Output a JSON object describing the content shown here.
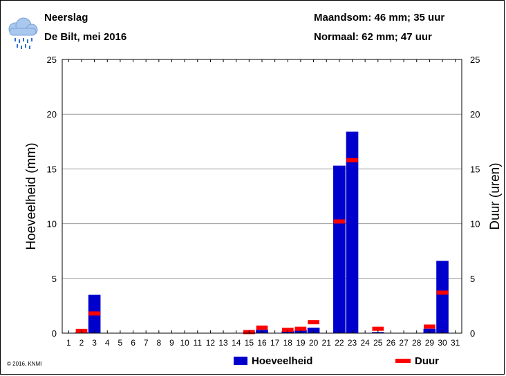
{
  "header": {
    "title": "Neerslag",
    "subtitle": "De Bilt, mei 2016",
    "monthly_sum": "Maandsom: 46 mm; 35 uur",
    "normal": "Normaal: 62 mm; 47 uur"
  },
  "icon": "rain-cloud-icon",
  "copyright": "© 2016, KNMI",
  "colors": {
    "amount": "#0000cc",
    "duration": "#ff0000",
    "grid": "#999999"
  },
  "chart_data": {
    "type": "bar",
    "ylabel": "Hoeveelheid (mm)",
    "y2label": "Duur (uren)",
    "ylim": [
      0,
      25
    ],
    "y2lim": [
      0,
      25
    ],
    "yticks": [
      0,
      5,
      10,
      15,
      20,
      25
    ],
    "categories": [
      "1",
      "2",
      "3",
      "4",
      "5",
      "6",
      "7",
      "8",
      "9",
      "10",
      "11",
      "12",
      "13",
      "14",
      "15",
      "16",
      "17",
      "18",
      "19",
      "20",
      "21",
      "22",
      "23",
      "24",
      "25",
      "26",
      "27",
      "28",
      "29",
      "30",
      "31"
    ],
    "series": [
      {
        "name": "Hoeveelheid",
        "kind": "bar",
        "values": [
          0,
          0.1,
          3.5,
          0,
          0,
          0,
          0,
          0,
          0,
          0,
          0,
          0,
          0,
          0,
          0.1,
          0.3,
          0,
          0.2,
          0.3,
          0.5,
          0,
          15.3,
          18.4,
          0,
          0.1,
          0,
          0,
          0,
          0.4,
          6.6,
          0
        ]
      },
      {
        "name": "Duur",
        "kind": "marker",
        "values": [
          0,
          0.2,
          1.8,
          0,
          0,
          0,
          0,
          0,
          0,
          0,
          0,
          0,
          0,
          0,
          0.1,
          0.5,
          0,
          0.3,
          0.4,
          1.0,
          0,
          10.2,
          15.8,
          0,
          0.4,
          0,
          0,
          0,
          0.6,
          3.7,
          0
        ]
      }
    ],
    "legend": {
      "position": "bottom-center"
    }
  }
}
